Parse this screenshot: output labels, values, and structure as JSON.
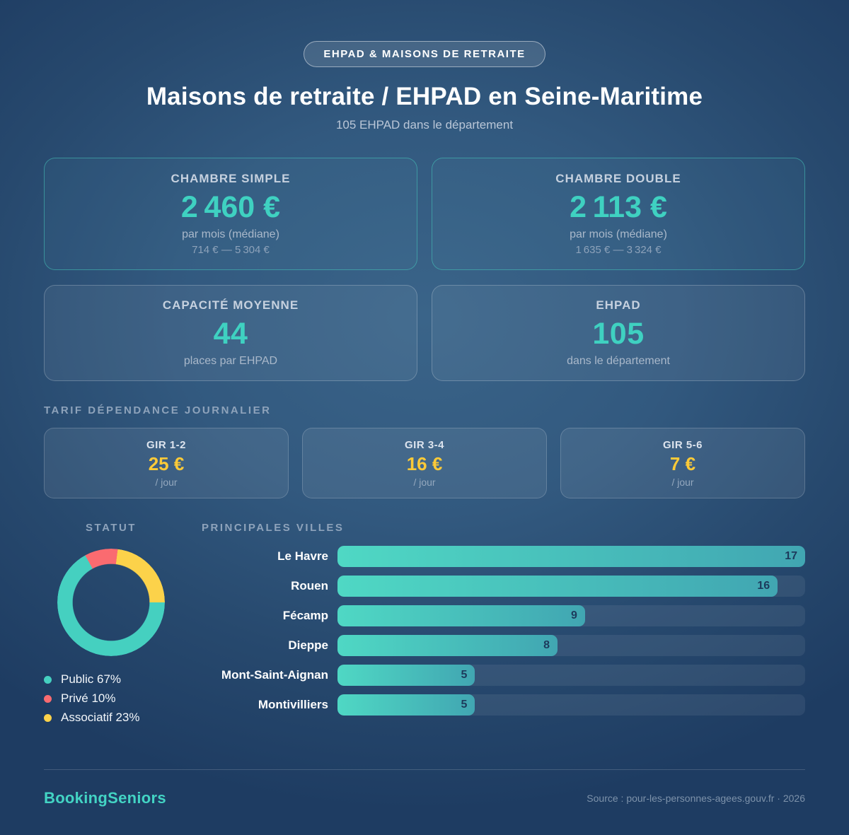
{
  "badge": {
    "label": "EHPAD & MAISONS DE RETRAITE"
  },
  "header": {
    "title": "Maisons de retraite / EHPAD en Seine-Maritime",
    "subtitle": "105 EHPAD dans le département"
  },
  "stat_cards": [
    {
      "label": "CHAMBRE SIMPLE",
      "value": "2 460 €",
      "unit": "par mois (médiane)",
      "range": "714 € — 5 304 €"
    },
    {
      "label": "CHAMBRE DOUBLE",
      "value": "2 113 €",
      "unit": "par mois (médiane)",
      "range": "1 635 € — 3 324 €"
    },
    {
      "label": "CAPACITÉ MOYENNE",
      "value": "44",
      "unit": "places par EHPAD"
    },
    {
      "label": "EHPAD",
      "value": "105",
      "unit": "dans le département"
    }
  ],
  "tarif_section": {
    "title": "TARIF DÉPENDANCE JOURNALIER",
    "cards": [
      {
        "label": "GIR 1-2",
        "value": "25 €",
        "unit": "/ jour"
      },
      {
        "label": "GIR 3-4",
        "value": "16 €",
        "unit": "/ jour"
      },
      {
        "label": "GIR 5-6",
        "value": "7 €",
        "unit": "/ jour"
      }
    ]
  },
  "statut_section": {
    "title": "STATUT"
  },
  "villes_section": {
    "title": "PRINCIPALES VILLES"
  },
  "chart_data": [
    {
      "type": "pie",
      "donut": true,
      "title": "STATUT",
      "labels": [
        "Public",
        "Privé",
        "Associatif"
      ],
      "values": [
        67,
        10,
        23
      ],
      "unit": "%",
      "colors": [
        "#45d0c0",
        "#fa6b70",
        "#fcd24a"
      ],
      "start_angle_deg": 90,
      "legend_position": "bottom-left"
    },
    {
      "type": "bar",
      "orientation": "horizontal",
      "title": "PRINCIPALES VILLES",
      "categories": [
        "Le Havre",
        "Rouen",
        "Fécamp",
        "Dieppe",
        "Mont-Saint-Aignan",
        "Montivilliers"
      ],
      "values": [
        17,
        16,
        9,
        8,
        5,
        5
      ],
      "xlim": [
        0,
        17
      ],
      "bar_color_left": "#4fd8c4",
      "bar_color_right": "#41a6b2",
      "value_label_color": "#1d3a5c"
    }
  ],
  "footer": {
    "brand": "BookingSeniors",
    "source": "Source : pour-les-personnes-agees.gouv.fr · 2026"
  },
  "colors": {
    "background_center": "#3a6489",
    "background_edge": "#1e3c62",
    "accent_teal": "#3fd1c1",
    "accent_yellow": "#fcca38",
    "muted_text": "#8ea3bb"
  }
}
